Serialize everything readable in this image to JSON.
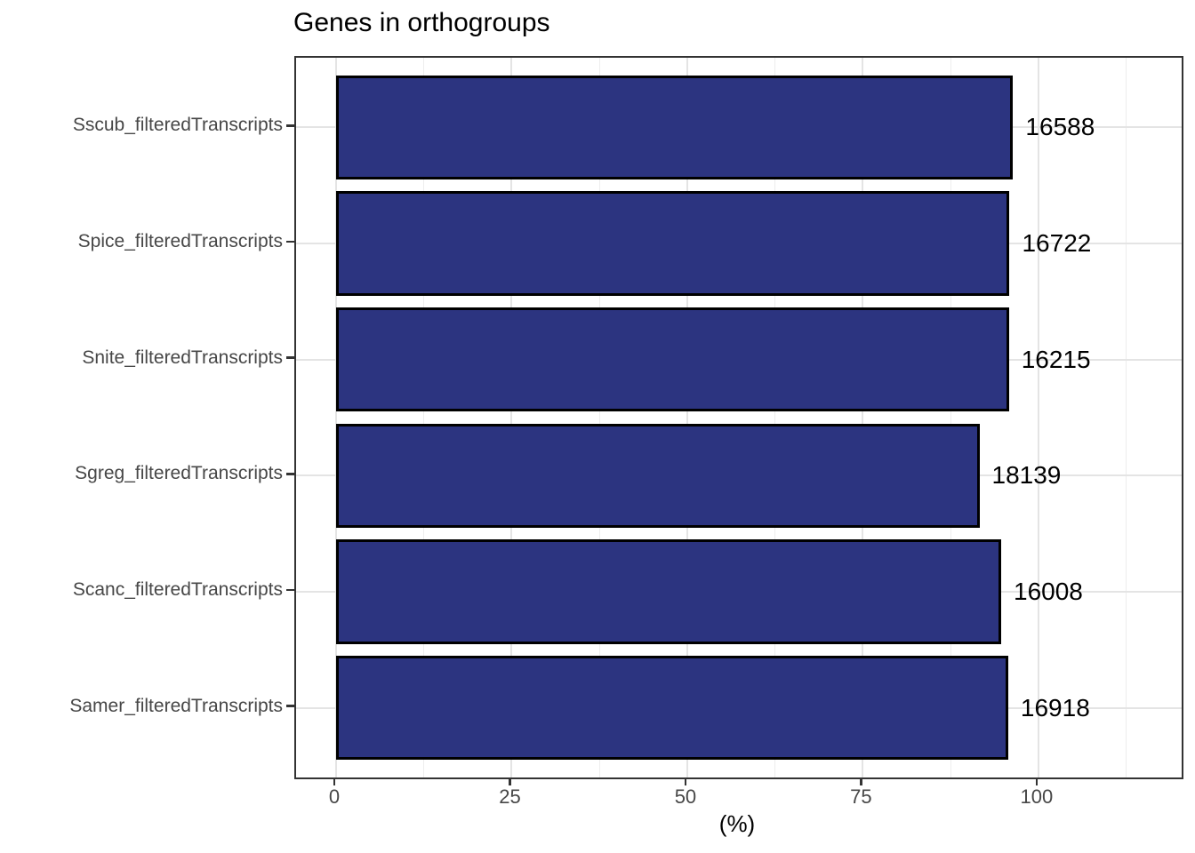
{
  "chart_data": {
    "type": "bar",
    "orientation": "horizontal",
    "title": "Genes in orthogroups",
    "xlabel": "(%)",
    "ylabel": "",
    "legend": null,
    "grid": {
      "vertical": "major+minor",
      "horizontal": "major"
    },
    "categories": [
      "Sscub_filteredTranscripts",
      "Spice_filteredTranscripts",
      "Snite_filteredTranscripts",
      "Sgreg_filteredTranscripts",
      "Scanc_filteredTranscripts",
      "Samer_filteredTranscripts"
    ],
    "values_percent": [
      96.4,
      95.9,
      95.8,
      91.6,
      94.7,
      95.7
    ],
    "bar_labels": [
      "16588",
      "16722",
      "16215",
      "18139",
      "16008",
      "16918"
    ],
    "x_ticks": [
      0,
      25,
      50,
      75,
      100
    ],
    "x_minor_ticks": [
      12.5,
      37.5,
      62.5,
      87.5,
      112.5
    ],
    "xlim": [
      -5.7,
      120.4
    ],
    "colors": {
      "bar_fill": "#2c3480",
      "bar_stroke": "#000000",
      "grid_major": "#e4e4e4",
      "grid_minor": "#ededed",
      "panel_border": "#333333",
      "tick_label": "#474747",
      "text": "#000000"
    }
  }
}
